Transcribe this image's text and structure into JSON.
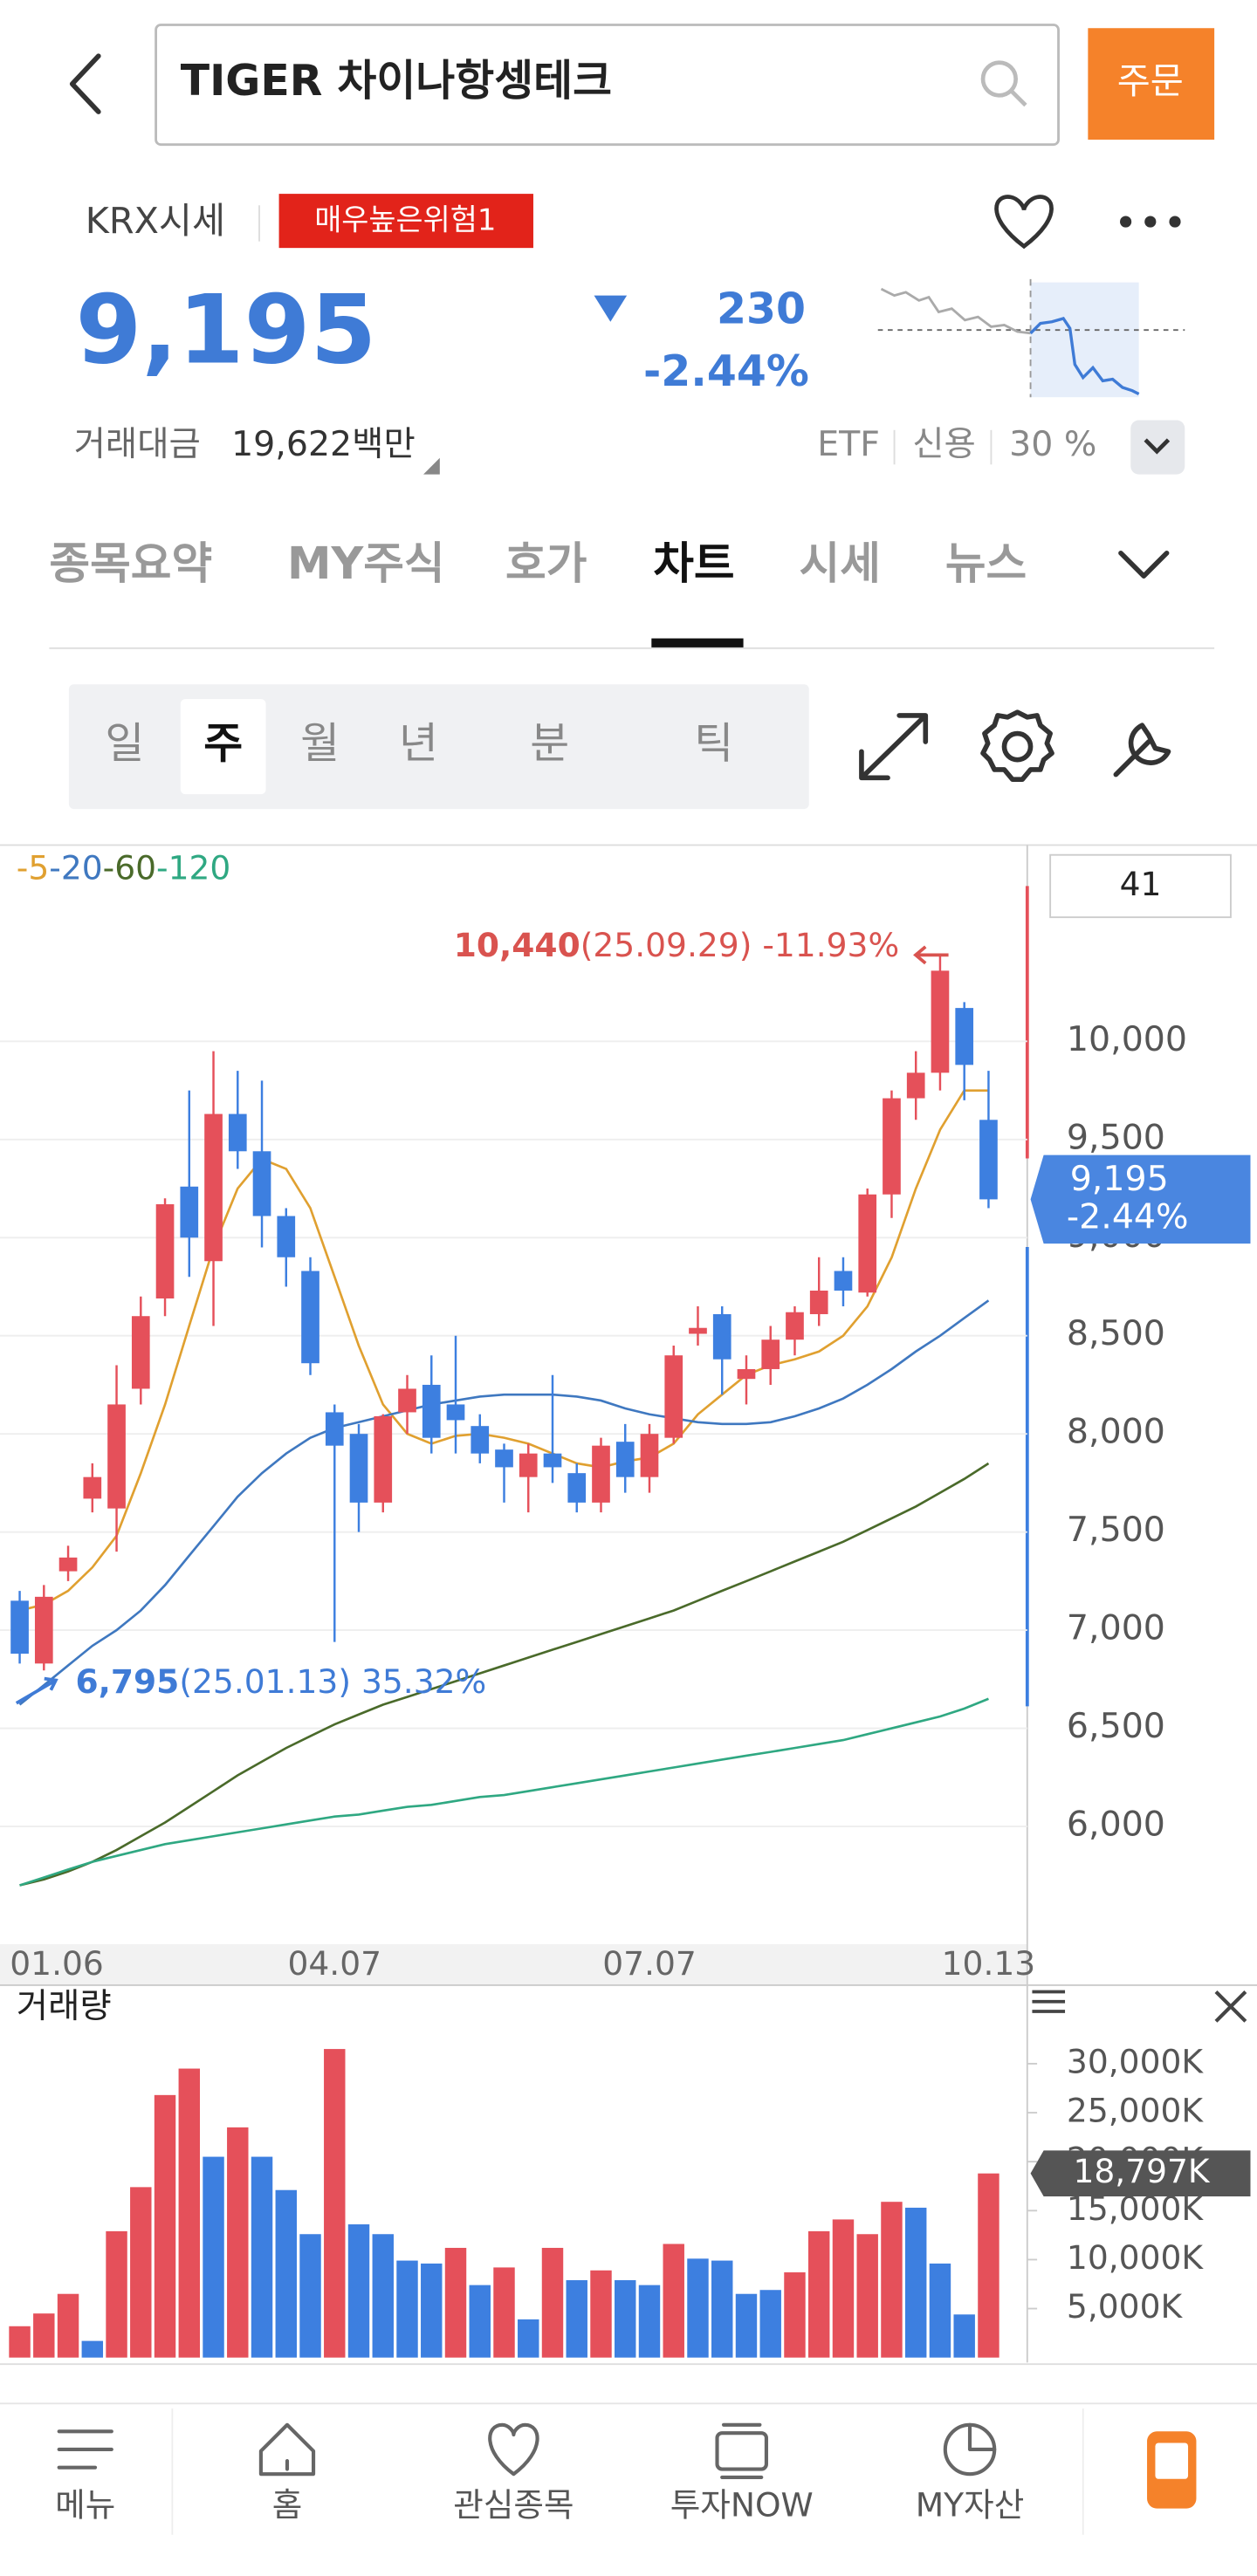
{
  "header": {
    "title": "TIGER 차이나항셍테크",
    "order_button": "주문"
  },
  "quote": {
    "market": "KRX시세",
    "risk_badge": "매우높은위험1",
    "price": "9,195",
    "change": "230",
    "change_rate": "-2.44%",
    "trading_value_label": "거래대금",
    "trading_value": "19,622백만",
    "etf": "ETF",
    "credit_label": "신용",
    "credit_rate": "30 %"
  },
  "tabs": [
    "종목요약",
    "MY주식",
    "호가",
    "차트",
    "시세",
    "뉴스"
  ],
  "active_tab": 3,
  "periods": [
    "일",
    "주",
    "월",
    "년",
    "분",
    "틱"
  ],
  "active_period": 1,
  "chart_data": [
    {
      "type": "candlestick",
      "visible_count": 41,
      "up_color": "#e5505a",
      "down_color": "#3d7fe0",
      "categories": [
        "01.06",
        null,
        null,
        null,
        null,
        null,
        null,
        null,
        null,
        null,
        null,
        null,
        null,
        "04.07",
        null,
        null,
        null,
        null,
        null,
        null,
        null,
        null,
        null,
        null,
        null,
        null,
        "07.07",
        null,
        null,
        null,
        null,
        null,
        null,
        null,
        null,
        null,
        null,
        null,
        null,
        null,
        "10.13"
      ],
      "open": [
        7150,
        6830,
        7300,
        7670,
        7620,
        8230,
        8690,
        9260,
        8880,
        9630,
        9440,
        9110,
        8830,
        8110,
        8000,
        7650,
        8110,
        8250,
        8150,
        8040,
        7920,
        7780,
        7900,
        7800,
        7650,
        7960,
        7780,
        7980,
        8510,
        8610,
        8280,
        8330,
        8480,
        8610,
        8830,
        8720,
        9220,
        9710,
        9840,
        10170,
        9600
      ],
      "high": [
        7200,
        7230,
        7430,
        7850,
        8350,
        8700,
        9200,
        9750,
        9950,
        9850,
        9800,
        9150,
        8900,
        8150,
        8050,
        8100,
        8300,
        8400,
        8500,
        8100,
        7950,
        7950,
        8300,
        7850,
        7980,
        8050,
        8050,
        8450,
        8650,
        8650,
        8400,
        8550,
        8650,
        8900,
        8900,
        9250,
        9750,
        9950,
        10440,
        10200,
        9850
      ],
      "low": [
        6830,
        6795,
        7250,
        7600,
        7400,
        8150,
        8600,
        8800,
        8550,
        9350,
        8950,
        8750,
        8300,
        6940,
        7500,
        7600,
        8000,
        7900,
        7900,
        7850,
        7650,
        7600,
        7750,
        7600,
        7600,
        7700,
        7700,
        7950,
        8450,
        8200,
        8150,
        8250,
        8400,
        8550,
        8650,
        8700,
        9100,
        9600,
        9750,
        9700,
        9150
      ],
      "close": [
        6880,
        7170,
        7370,
        7780,
        8150,
        8600,
        9170,
        9000,
        9630,
        9440,
        9110,
        8900,
        8360,
        7940,
        7650,
        8090,
        8230,
        7980,
        8070,
        7900,
        7830,
        7900,
        7830,
        7650,
        7940,
        7780,
        8000,
        8400,
        8540,
        8380,
        8330,
        8480,
        8620,
        8730,
        8730,
        9220,
        9710,
        9840,
        10360,
        9880,
        9195
      ],
      "moving_averages": [
        {
          "name": "-5",
          "color": "#e0a030",
          "values": [
            7100,
            7130,
            7200,
            7320,
            7480,
            7800,
            8150,
            8550,
            8950,
            9250,
            9400,
            9350,
            9150,
            8800,
            8450,
            8150,
            8000,
            7950,
            7990,
            8000,
            7980,
            7950,
            7900,
            7850,
            7830,
            7860,
            7880,
            7950,
            8100,
            8200,
            8300,
            8350,
            8380,
            8420,
            8500,
            8650,
            8900,
            9250,
            9550,
            9750,
            9750
          ]
        },
        {
          "name": "-20",
          "color": "#3f78c0",
          "values": [
            6620,
            6720,
            6820,
            6920,
            7000,
            7100,
            7230,
            7380,
            7530,
            7680,
            7800,
            7900,
            7980,
            8030,
            8060,
            8090,
            8120,
            8150,
            8170,
            8190,
            8200,
            8200,
            8200,
            8190,
            8170,
            8130,
            8100,
            8080,
            8060,
            8050,
            8050,
            8060,
            8090,
            8130,
            8180,
            8250,
            8330,
            8420,
            8500,
            8590,
            8680
          ]
        },
        {
          "name": "-60",
          "color": "#4a6a2a",
          "values": [
            5700,
            5730,
            5770,
            5820,
            5880,
            5950,
            6020,
            6100,
            6180,
            6260,
            6330,
            6400,
            6460,
            6520,
            6570,
            6620,
            6660,
            6700,
            6740,
            6780,
            6820,
            6860,
            6900,
            6940,
            6980,
            7020,
            7060,
            7100,
            7150,
            7200,
            7250,
            7300,
            7350,
            7400,
            7450,
            7510,
            7570,
            7630,
            7700,
            7770,
            7850
          ]
        },
        {
          "name": "-120",
          "color": "#2fa882",
          "values": [
            5700,
            5740,
            5780,
            5820,
            5850,
            5880,
            5910,
            5930,
            5950,
            5970,
            5990,
            6010,
            6030,
            6050,
            6060,
            6080,
            6100,
            6110,
            6130,
            6150,
            6160,
            6180,
            6200,
            6220,
            6240,
            6260,
            6280,
            6300,
            6320,
            6340,
            6360,
            6380,
            6400,
            6420,
            6440,
            6470,
            6500,
            6530,
            6560,
            6600,
            6650
          ]
        }
      ],
      "ylim": [
        5400,
        11000
      ],
      "yticks": [
        {
          "value": 6000,
          "label": "6,000"
        },
        {
          "value": 6500,
          "label": "6,500"
        },
        {
          "value": 7000,
          "label": "7,000"
        },
        {
          "value": 7500,
          "label": "7,500"
        },
        {
          "value": 8000,
          "label": "8,000"
        },
        {
          "value": 8500,
          "label": "8,500"
        },
        {
          "value": 9000,
          "label": "9,000"
        },
        {
          "value": 9500,
          "label": "9,500"
        },
        {
          "value": 10000,
          "label": "10,000"
        }
      ],
      "grid": true,
      "high_annotation": {
        "value": 10440,
        "label": "10,440",
        "text": "(25.09.29) -11.93%"
      },
      "low_annotation": {
        "value": 6795,
        "label": "6,795",
        "text": "(25.01.13) 35.32%"
      },
      "current": {
        "value": 9195,
        "label": "9,195",
        "change": "-2.44%"
      }
    },
    {
      "type": "bar",
      "title": "거래량",
      "up_color": "#e5505a",
      "down_color": "#3d7fe0",
      "values": [
        3200,
        4500,
        6500,
        1700,
        12900,
        17400,
        26800,
        29500,
        20500,
        23500,
        20500,
        17100,
        12600,
        31500,
        13600,
        12600,
        9900,
        9600,
        11200,
        7400,
        9200,
        3900,
        11200,
        7900,
        8900,
        7900,
        7400,
        11600,
        10100,
        9900,
        6500,
        6900,
        8700,
        12900,
        14100,
        12600,
        15900,
        15300,
        9600,
        4400,
        18797
      ],
      "up": [
        true,
        true,
        true,
        false,
        true,
        true,
        true,
        true,
        false,
        true,
        false,
        false,
        false,
        true,
        false,
        false,
        false,
        false,
        true,
        false,
        true,
        false,
        true,
        false,
        true,
        false,
        false,
        true,
        false,
        false,
        false,
        false,
        true,
        true,
        true,
        true,
        true,
        false,
        false,
        false,
        true
      ],
      "ylim": [
        0,
        35000
      ],
      "yticks": [
        {
          "value": 5000,
          "label": "5,000K"
        },
        {
          "value": 10000,
          "label": "10,000K"
        },
        {
          "value": 15000,
          "label": "15,000K"
        },
        {
          "value": 20000,
          "label": "20,000K"
        },
        {
          "value": 25000,
          "label": "25,000K"
        },
        {
          "value": 30000,
          "label": "30,000K"
        }
      ],
      "current": {
        "value": 18797,
        "label": "18,797K"
      }
    }
  ],
  "nav": [
    "메뉴",
    "홈",
    "관심종목",
    "투자NOW",
    "MY자산"
  ]
}
